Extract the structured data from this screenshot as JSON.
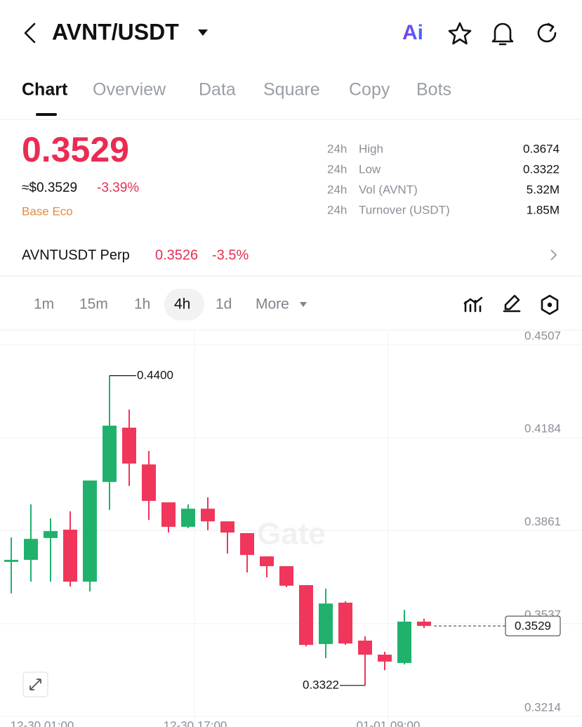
{
  "header": {
    "pair": "AVNT/USDT",
    "ai": "Ai"
  },
  "tabs": [
    "Chart",
    "Overview",
    "Data",
    "Square",
    "Copy",
    "Bots"
  ],
  "ticker": {
    "price": "0.3529",
    "approx": "≈$0.3529",
    "change": "-3.39%",
    "tag": "Base Eco"
  },
  "stats": [
    {
      "period": "24h",
      "label": "High",
      "value": "0.3674"
    },
    {
      "period": "24h",
      "label": "Low",
      "value": "0.3322"
    },
    {
      "period": "24h",
      "label": "Vol (AVNT)",
      "value": "5.32M"
    },
    {
      "period": "24h",
      "label": "Turnover (USDT)",
      "value": "1.85M"
    }
  ],
  "perp": {
    "name": "AVNTUSDT Perp",
    "price": "0.3526",
    "change": "-3.5%"
  },
  "intervals": [
    "1m",
    "15m",
    "1h",
    "4h",
    "1d",
    "More"
  ],
  "chart_data": {
    "type": "candlestick",
    "watermark": "Gate",
    "x_labels": [
      "12-30 01:00",
      "12-30 17:00",
      "01-01 09:00"
    ],
    "open": [
      0.3752,
      0.3759,
      0.3835,
      0.3864,
      0.3683,
      0.403,
      0.4219,
      0.4091,
      0.3959,
      0.3874,
      0.3937,
      0.3893,
      0.3852,
      0.3771,
      0.3737,
      0.3671,
      0.3466,
      0.361,
      0.3478,
      0.3429,
      0.34,
      0.3544
    ],
    "high": [
      0.3837,
      0.3952,
      0.3903,
      0.3928,
      0.4035,
      0.44,
      0.4282,
      0.4138,
      0.3959,
      0.3952,
      0.3977,
      0.3893,
      0.3852,
      0.3771,
      0.3737,
      0.3671,
      0.3659,
      0.3615,
      0.3493,
      0.3439,
      0.3585,
      0.3554
    ],
    "low": [
      0.3642,
      0.3683,
      0.3683,
      0.3666,
      0.3649,
      0.3933,
      0.4016,
      0.3898,
      0.3854,
      0.3869,
      0.3862,
      0.3781,
      0.3715,
      0.3698,
      0.3664,
      0.3458,
      0.3417,
      0.3463,
      0.3322,
      0.3375,
      0.3395,
      0.3522
    ],
    "close": [
      0.3759,
      0.3832,
      0.3859,
      0.3683,
      0.4035,
      0.4226,
      0.4094,
      0.3964,
      0.3874,
      0.3937,
      0.3893,
      0.3854,
      0.3776,
      0.3737,
      0.3669,
      0.3463,
      0.3607,
      0.3468,
      0.3429,
      0.3405,
      0.3544,
      0.3529
    ],
    "up_color": "#20b26c",
    "down_color": "#f0365a",
    "ylim": [
      0.3214,
      0.4507
    ],
    "yticks": [
      0.3214,
      0.3537,
      0.3861,
      0.4184,
      0.4507
    ],
    "grid": true,
    "annotations": [
      {
        "value": 0.44,
        "label": "0.4400"
      },
      {
        "value": 0.3322,
        "label": "0.3322"
      }
    ],
    "last_price": 0.3529
  }
}
